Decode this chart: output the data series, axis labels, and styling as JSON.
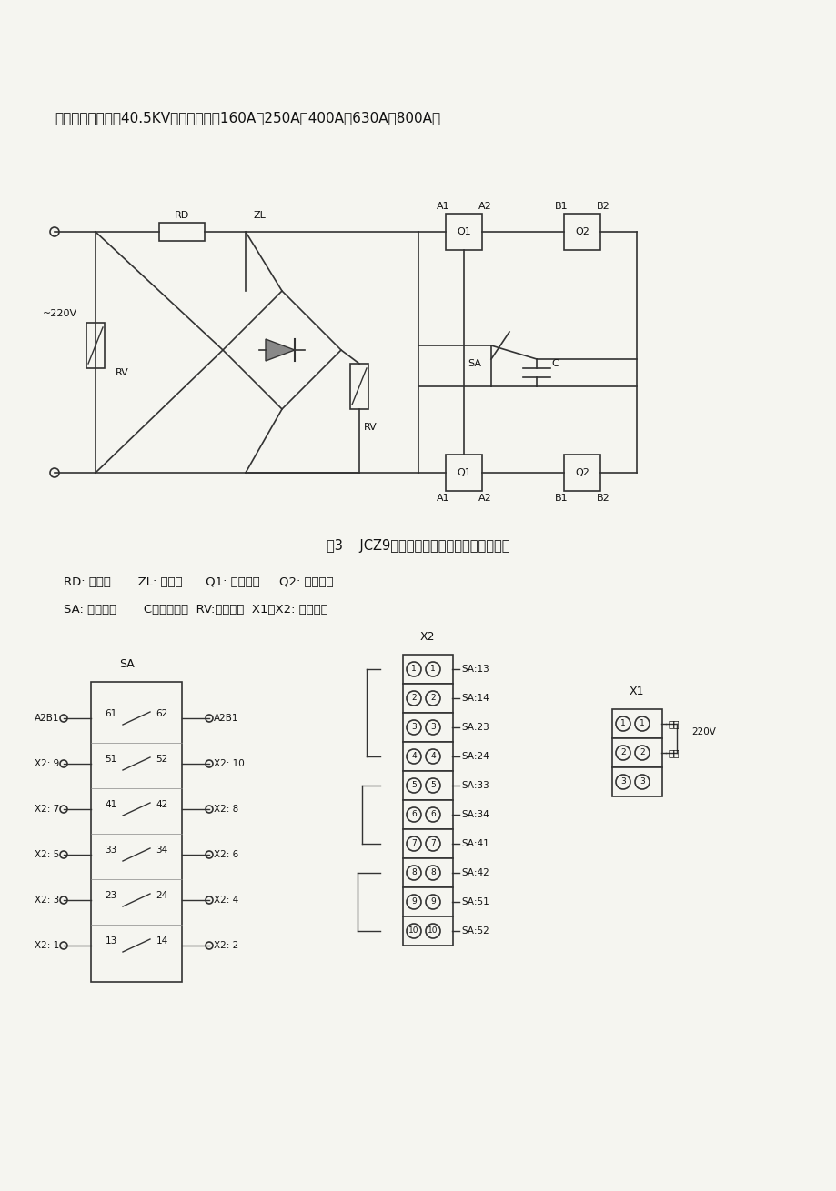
{
  "bg_color": "#f5f5f0",
  "title_text": "产品分额定电压为40.5KV，额定电流为160A、250A、400A、630A、800A。",
  "fig3_caption": "图3    JCZ9系列电保持型二次回路工作原理图",
  "legend_line1": "RD: 熔断器       ZL: 整流桥      Q1: 启动线圈     Q2: 维持线圈",
  "legend_line2": "SA: 辅助开关       C：吸收电容  RV:压敏电阻  X1、X2: 接线端子"
}
